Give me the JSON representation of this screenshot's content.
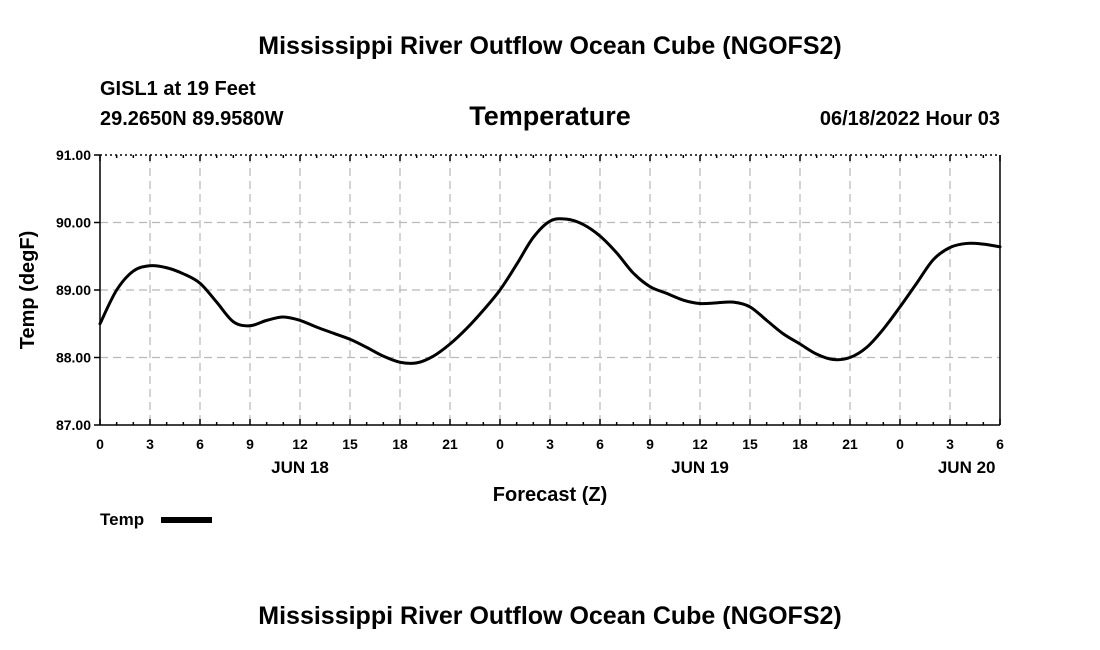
{
  "chart_data": {
    "type": "line",
    "title": "Mississippi River Outflow Ocean Cube (NGOFS2)",
    "subtitle": "Temperature",
    "station": "GISL1 at 19 Feet",
    "location": "29.2650N  89.9580W",
    "datetime": "06/18/2022 Hour 03",
    "footer_title": "Mississippi River Outflow Ocean Cube (NGOFS2)",
    "xlabel": "Forecast (Z)",
    "ylabel": "Temp (degF)",
    "xlim": [
      0,
      54
    ],
    "ylim": [
      87.0,
      91.0
    ],
    "grid": true,
    "x_ticks": [
      0,
      3,
      6,
      9,
      12,
      15,
      18,
      21,
      24,
      27,
      30,
      33,
      36,
      39,
      42,
      45,
      48,
      51,
      54
    ],
    "x_tick_labels": [
      "0",
      "3",
      "6",
      "9",
      "12",
      "15",
      "18",
      "21",
      "0",
      "3",
      "6",
      "9",
      "12",
      "15",
      "18",
      "21",
      "0",
      "3",
      "6"
    ],
    "day_labels": [
      {
        "x": 12,
        "label": "JUN 18"
      },
      {
        "x": 36,
        "label": "JUN 19"
      },
      {
        "x": 52,
        "label": "JUN 20"
      }
    ],
    "y_ticks": [
      87.0,
      88.0,
      89.0,
      90.0,
      91.0
    ],
    "y_tick_labels": [
      "87.00",
      "88.00",
      "89.00",
      "90.00",
      "91.00"
    ],
    "legend": {
      "position": "bottom-left",
      "label": "Temp"
    },
    "series": [
      {
        "name": "Temp",
        "color": "#000000",
        "x": [
          0,
          1,
          2,
          3,
          4,
          5,
          6,
          7,
          8,
          9,
          10,
          11,
          12,
          13,
          14,
          15,
          16,
          17,
          18,
          19,
          20,
          21,
          22,
          23,
          24,
          25,
          26,
          27,
          28,
          29,
          30,
          31,
          32,
          33,
          34,
          35,
          36,
          37,
          38,
          39,
          40,
          41,
          42,
          43,
          44,
          45,
          46,
          47,
          48,
          49,
          50,
          51,
          52,
          53,
          54
        ],
        "values": [
          88.5,
          89.0,
          89.28,
          89.36,
          89.33,
          89.24,
          89.1,
          88.82,
          88.53,
          88.47,
          88.55,
          88.6,
          88.55,
          88.45,
          88.36,
          88.27,
          88.15,
          88.02,
          87.93,
          87.92,
          88.02,
          88.2,
          88.43,
          88.7,
          89.0,
          89.38,
          89.78,
          90.02,
          90.05,
          89.97,
          89.8,
          89.55,
          89.25,
          89.05,
          88.95,
          88.85,
          88.8,
          88.81,
          88.82,
          88.75,
          88.55,
          88.35,
          88.2,
          88.05,
          87.97,
          88.0,
          88.15,
          88.42,
          88.75,
          89.1,
          89.45,
          89.63,
          89.69,
          89.68,
          89.64
        ]
      }
    ]
  }
}
